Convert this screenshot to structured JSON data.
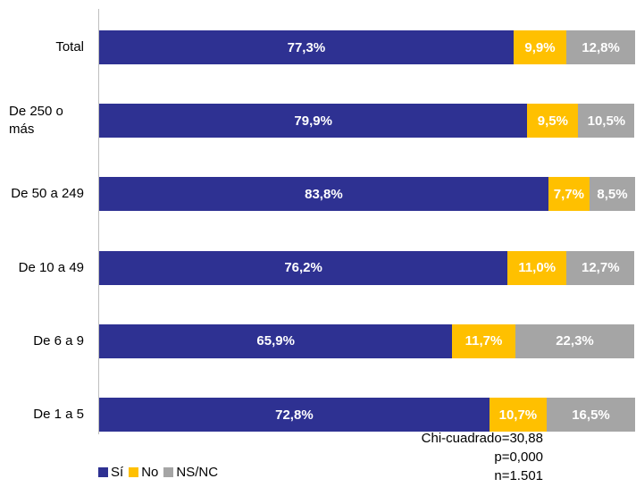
{
  "chart_data": {
    "type": "bar",
    "orientation": "horizontal",
    "stacked": true,
    "categories": [
      "Total",
      "De 250 o más",
      "De 50 a 249",
      "De 10 a 49",
      "De 6 a 9",
      "De 1 a 5"
    ],
    "xlim": [
      0,
      100
    ],
    "series": [
      {
        "name": "Sí",
        "color": "#2e3192",
        "values": [
          77.3,
          79.9,
          83.8,
          76.2,
          65.9,
          72.8
        ],
        "value_labels": [
          "77,3%",
          "79,9%",
          "83,8%",
          "76,2%",
          "65,9%",
          "72,8%"
        ]
      },
      {
        "name": "No",
        "color": "#ffc000",
        "values": [
          9.9,
          9.5,
          7.7,
          11.0,
          11.7,
          10.7
        ],
        "value_labels": [
          "9,9%",
          "9,5%",
          "7,7%",
          "11,0%",
          "11,7%",
          "10,7%"
        ]
      },
      {
        "name": "NS/NC",
        "color": "#a5a5a5",
        "values": [
          12.8,
          10.5,
          8.5,
          12.7,
          22.3,
          16.5
        ],
        "value_labels": [
          "12,8%",
          "10,5%",
          "8,5%",
          "12,7%",
          "22,3%",
          "16,5%"
        ]
      }
    ],
    "annotations": [
      "Chi-cuadrado=30,88",
      "p=0,000",
      "n=1.501"
    ],
    "legend": "bottom-left"
  }
}
